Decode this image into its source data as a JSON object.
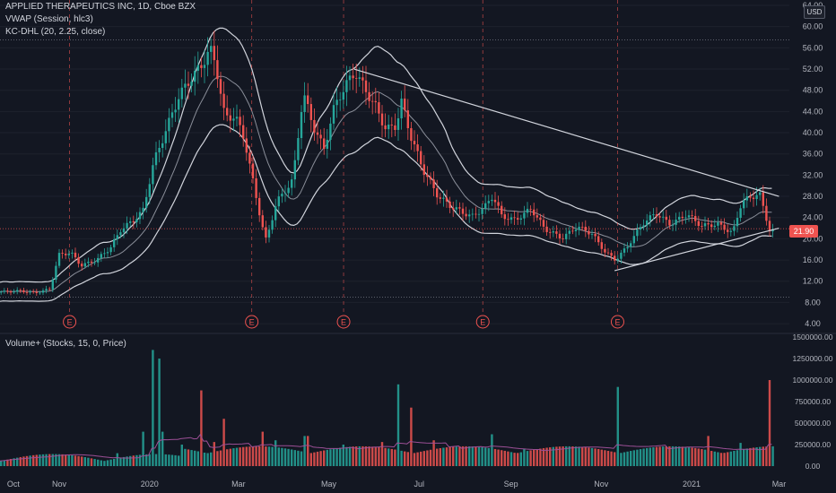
{
  "legend": {
    "symbol": "APPLIED THERAPEUTICS INC, 1D, Cboe BZX",
    "vwap": "VWAP (Session, hlc3)",
    "kc": "KC-DHL (20, 2.25, close)",
    "volume": "Volume+ (Stocks, 15, 0, Price)"
  },
  "currency_button": "USD",
  "last_price_label": "21.90",
  "colors": {
    "background": "#131722",
    "up": "#26a69a",
    "down": "#ef5350",
    "grid": "#1e222d",
    "band": "#d1d4dc",
    "basis": "#8a8e99",
    "volume_ma": "#9c4f96",
    "earnings": "#ef5350"
  },
  "chart_data": [
    {
      "type": "candlestick",
      "ylabel": "",
      "ylim": [
        3,
        64
      ],
      "y_ticks": [
        "64.00",
        "60.00",
        "56.00",
        "52.00",
        "48.00",
        "44.00",
        "40.00",
        "36.00",
        "32.00",
        "28.00",
        "24.00",
        "20.00",
        "16.00",
        "12.00",
        "8.00",
        "4.00"
      ],
      "x_ticks": [
        "Oct",
        "Nov",
        "2020",
        "Mar",
        "May",
        "Jul",
        "Sep",
        "Nov",
        "2021",
        "Mar"
      ],
      "earnings_markers": [
        "E",
        "E",
        "E",
        "E",
        "E"
      ],
      "close_series": [
        {
          "date": "2019-09-23",
          "close": 10.0
        },
        {
          "date": "2019-10-05",
          "close": 10.3
        },
        {
          "date": "2019-10-15",
          "close": 10.0
        },
        {
          "date": "2019-10-25",
          "close": 10.8
        },
        {
          "date": "2019-10-31",
          "close": 17.5
        },
        {
          "date": "2019-11-08",
          "close": 18.0
        },
        {
          "date": "2019-11-15",
          "close": 15.5
        },
        {
          "date": "2019-11-25",
          "close": 16.5
        },
        {
          "date": "2019-12-05",
          "close": 19.0
        },
        {
          "date": "2019-12-12",
          "close": 22.5
        },
        {
          "date": "2019-12-20",
          "close": 24.0
        },
        {
          "date": "2019-12-27",
          "close": 26.0
        },
        {
          "date": "2020-01-03",
          "close": 35.0
        },
        {
          "date": "2020-01-10",
          "close": 40.0
        },
        {
          "date": "2020-01-20",
          "close": 47.0
        },
        {
          "date": "2020-01-28",
          "close": 50.0
        },
        {
          "date": "2020-02-04",
          "close": 52.0
        },
        {
          "date": "2020-02-10",
          "close": 55.0
        },
        {
          "date": "2020-02-14",
          "close": 52.0
        },
        {
          "date": "2020-02-20",
          "close": 42.0
        },
        {
          "date": "2020-02-27",
          "close": 42.0
        },
        {
          "date": "2020-03-04",
          "close": 38.0
        },
        {
          "date": "2020-03-10",
          "close": 30.0
        },
        {
          "date": "2020-03-16",
          "close": 22.0
        },
        {
          "date": "2020-03-19",
          "close": 19.0
        },
        {
          "date": "2020-03-26",
          "close": 26.0
        },
        {
          "date": "2020-04-06",
          "close": 30.0
        },
        {
          "date": "2020-04-13",
          "close": 46.0
        },
        {
          "date": "2020-04-20",
          "close": 40.0
        },
        {
          "date": "2020-04-27",
          "close": 36.0
        },
        {
          "date": "2020-05-04",
          "close": 44.0
        },
        {
          "date": "2020-05-11",
          "close": 48.0
        },
        {
          "date": "2020-05-18",
          "close": 51.0
        },
        {
          "date": "2020-05-25",
          "close": 48.0
        },
        {
          "date": "2020-06-01",
          "close": 45.0
        },
        {
          "date": "2020-06-08",
          "close": 41.0
        },
        {
          "date": "2020-06-15",
          "close": 42.0
        },
        {
          "date": "2020-06-18",
          "close": 47.0
        },
        {
          "date": "2020-06-25",
          "close": 40.0
        },
        {
          "date": "2020-07-03",
          "close": 34.0
        },
        {
          "date": "2020-07-13",
          "close": 29.0
        },
        {
          "date": "2020-07-22",
          "close": 27.0
        },
        {
          "date": "2020-08-05",
          "close": 25.0
        },
        {
          "date": "2020-08-14",
          "close": 27.0
        },
        {
          "date": "2020-08-19",
          "close": 29.0
        },
        {
          "date": "2020-08-25",
          "close": 25.0
        },
        {
          "date": "2020-09-03",
          "close": 24.0
        },
        {
          "date": "2020-09-14",
          "close": 26.0
        },
        {
          "date": "2020-09-23",
          "close": 22.0
        },
        {
          "date": "2020-10-05",
          "close": 20.0
        },
        {
          "date": "2020-10-15",
          "close": 22.0
        },
        {
          "date": "2020-10-25",
          "close": 20.5
        },
        {
          "date": "2020-11-03",
          "close": 17.0
        },
        {
          "date": "2020-11-10",
          "close": 15.5
        },
        {
          "date": "2020-11-18",
          "close": 18.0
        },
        {
          "date": "2020-11-28",
          "close": 22.0
        },
        {
          "date": "2020-12-07",
          "close": 24.0
        },
        {
          "date": "2020-12-17",
          "close": 22.0
        },
        {
          "date": "2020-12-28",
          "close": 24.0
        },
        {
          "date": "2021-01-07",
          "close": 22.0
        },
        {
          "date": "2021-01-18",
          "close": 22.5
        },
        {
          "date": "2021-01-28",
          "close": 21.0
        },
        {
          "date": "2021-02-03",
          "close": 27.0
        },
        {
          "date": "2021-02-09",
          "close": 28.0
        },
        {
          "date": "2021-02-15",
          "close": 29.0
        },
        {
          "date": "2021-02-19",
          "close": 25.0
        },
        {
          "date": "2021-02-22",
          "close": 22.0
        },
        {
          "date": "2021-02-25",
          "close": 21.9
        }
      ],
      "last_close": 21.9,
      "resistance_trendline": [
        {
          "date": "2020-05-18",
          "value": 52.0
        },
        {
          "date": "2021-03-01",
          "value": 28.0
        }
      ],
      "support_trendline": [
        {
          "date": "2020-11-10",
          "value": 14.0
        },
        {
          "date": "2021-03-01",
          "value": 22.0
        }
      ],
      "horizontal_levels": [
        57.5,
        9.0
      ]
    },
    {
      "type": "bar",
      "title": "",
      "ylim": [
        0,
        1500000
      ],
      "y_ticks": [
        "1500000.00",
        "1250000.00",
        "1000000.00",
        "750000.00",
        "500000.00",
        "250000.00",
        "0.00"
      ],
      "volume_series": [
        {
          "date": "2019-09-23",
          "volume": 40000
        },
        {
          "date": "2019-10-05",
          "volume": 30000
        },
        {
          "date": "2019-10-31",
          "volume": 70000
        },
        {
          "date": "2019-11-20",
          "volume": 60000
        },
        {
          "date": "2019-12-10",
          "volume": 150000
        },
        {
          "date": "2019-12-26",
          "volume": 400000
        },
        {
          "date": "2020-01-03",
          "volume": 1350000
        },
        {
          "date": "2020-01-06",
          "volume": 1250000
        },
        {
          "date": "2020-01-09",
          "volume": 400000
        },
        {
          "date": "2020-01-22",
          "volume": 250000
        },
        {
          "date": "2020-02-05",
          "volume": 880000
        },
        {
          "date": "2020-02-12",
          "volume": 280000
        },
        {
          "date": "2020-02-20",
          "volume": 550000
        },
        {
          "date": "2020-03-16",
          "volume": 400000
        },
        {
          "date": "2020-03-25",
          "volume": 300000
        },
        {
          "date": "2020-04-15",
          "volume": 350000
        },
        {
          "date": "2020-05-11",
          "volume": 250000
        },
        {
          "date": "2020-06-05",
          "volume": 280000
        },
        {
          "date": "2020-06-17",
          "volume": 950000
        },
        {
          "date": "2020-06-24",
          "volume": 680000
        },
        {
          "date": "2020-07-10",
          "volume": 300000
        },
        {
          "date": "2020-08-19",
          "volume": 370000
        },
        {
          "date": "2020-09-10",
          "volume": 200000
        },
        {
          "date": "2020-10-15",
          "volume": 180000
        },
        {
          "date": "2020-11-12",
          "volume": 920000
        },
        {
          "date": "2020-11-26",
          "volume": 150000
        },
        {
          "date": "2020-12-28",
          "volume": 200000
        },
        {
          "date": "2021-01-12",
          "volume": 350000
        },
        {
          "date": "2021-02-03",
          "volume": 270000
        },
        {
          "date": "2021-02-15",
          "volume": 150000
        },
        {
          "date": "2021-02-22",
          "volume": 1000000
        },
        {
          "date": "2021-02-26",
          "volume": 150000
        }
      ]
    }
  ]
}
